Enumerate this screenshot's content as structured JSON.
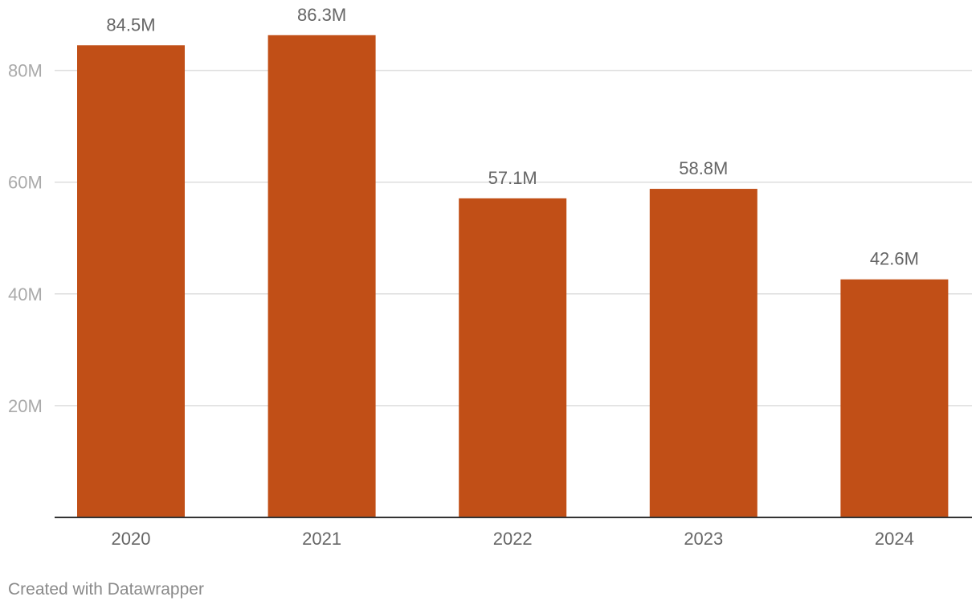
{
  "chart_data": {
    "type": "bar",
    "categories": [
      "2020",
      "2021",
      "2022",
      "2023",
      "2024"
    ],
    "values": [
      84.5,
      86.3,
      57.1,
      58.8,
      42.6
    ],
    "data_labels": [
      "84.5M",
      "86.3M",
      "57.1M",
      "58.8M",
      "42.6M"
    ],
    "yticks": [
      20,
      40,
      60,
      80
    ],
    "ytick_labels": [
      "20M",
      "40M",
      "60M",
      "80M"
    ],
    "ylim": [
      0,
      90
    ],
    "grid": true,
    "bar_color": "#c14f17"
  },
  "footer": {
    "credit": "Created with Datawrapper"
  }
}
